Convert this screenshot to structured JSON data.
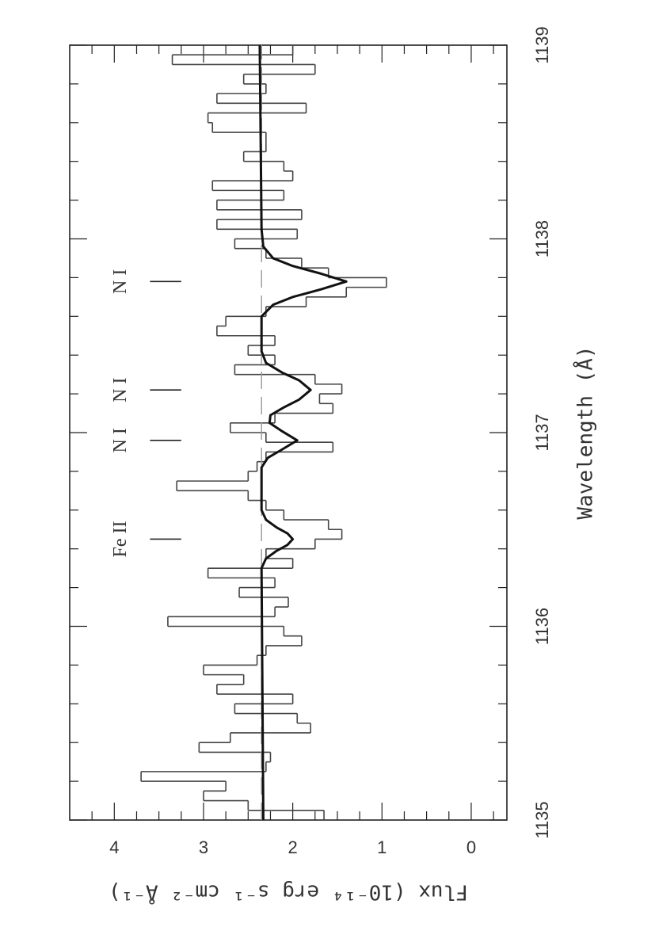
{
  "chart_data": {
    "type": "line",
    "xlabel": "Wavelength (Å)",
    "ylabel": "Flux (10⁻¹⁴ erg s⁻¹ cm⁻² Å⁻¹)",
    "xlim": [
      1135,
      1139
    ],
    "xticks": [
      1135,
      1136,
      1137,
      1138,
      1139
    ],
    "xminorticks": [
      1135.2,
      1135.4,
      1135.6,
      1135.8,
      1136.2,
      1136.4,
      1136.6,
      1136.8,
      1137.2,
      1137.4,
      1137.6,
      1137.8,
      1138.2,
      1138.4,
      1138.6,
      1138.8
    ],
    "ylim": [
      -0.4,
      4.5
    ],
    "yticks": [
      0,
      1,
      2,
      3,
      4
    ],
    "yminorticks": [
      -0.25,
      0.25,
      0.5,
      0.75,
      1.25,
      1.5,
      1.75,
      2.25,
      2.5,
      2.75,
      3.25,
      3.5,
      3.75,
      4.25
    ],
    "rotation": -90,
    "series": [
      {
        "type": "step",
        "color": "#444",
        "width": 1.6,
        "bins": [
          1135.0,
          1135.05,
          1135.1,
          1135.15,
          1135.2,
          1135.25,
          1135.3,
          1135.35,
          1135.4,
          1135.45,
          1135.5,
          1135.55,
          1135.6,
          1135.65,
          1135.7,
          1135.75,
          1135.8,
          1135.85,
          1135.9,
          1135.95,
          1136.0,
          1136.05,
          1136.1,
          1136.15,
          1136.2,
          1136.25,
          1136.3,
          1136.35,
          1136.4,
          1136.45,
          1136.5,
          1136.55,
          1136.6,
          1136.65,
          1136.7,
          1136.75,
          1136.8,
          1136.85,
          1136.9,
          1136.95,
          1137.0,
          1137.05,
          1137.1,
          1137.15,
          1137.2,
          1137.25,
          1137.3,
          1137.35,
          1137.4,
          1137.45,
          1137.5,
          1137.55,
          1137.6,
          1137.65,
          1137.7,
          1137.75,
          1137.8,
          1137.85,
          1137.9,
          1137.95,
          1138.0,
          1138.05,
          1138.1,
          1138.15,
          1138.2,
          1138.25,
          1138.3,
          1138.35,
          1138.4,
          1138.45,
          1138.5,
          1138.55,
          1138.6,
          1138.65,
          1138.7,
          1138.75,
          1138.8,
          1138.85,
          1138.9,
          1138.95,
          1139.0
        ],
        "values": [
          1.65,
          2.5,
          3.0,
          2.75,
          3.7,
          2.3,
          2.25,
          3.05,
          2.7,
          1.8,
          1.95,
          2.65,
          2.0,
          2.85,
          2.55,
          3.0,
          2.4,
          2.3,
          1.9,
          2.1,
          3.4,
          2.2,
          2.05,
          2.6,
          2.2,
          2.95,
          2.0,
          2.3,
          1.75,
          1.45,
          1.6,
          2.1,
          2.3,
          2.5,
          3.3,
          2.5,
          2.4,
          2.3,
          1.55,
          2.3,
          2.7,
          2.2,
          1.55,
          1.7,
          1.45,
          1.75,
          2.65,
          2.2,
          2.5,
          2.2,
          2.85,
          2.75,
          2.3,
          1.85,
          1.4,
          0.95,
          1.6,
          1.9,
          2.3,
          2.65,
          1.95,
          2.85,
          1.9,
          2.85,
          2.1,
          2.9,
          2.0,
          2.1,
          2.55,
          2.3,
          2.3,
          2.9,
          2.95,
          1.85,
          2.85,
          2.3,
          2.55,
          1.75,
          3.35,
          2.0
        ]
      },
      {
        "type": "line",
        "color": "#999",
        "width": 1.4,
        "dash": true,
        "x": [
          1135,
          1139
        ],
        "values": [
          2.35,
          2.35
        ]
      },
      {
        "type": "line",
        "color": "#111",
        "width": 3,
        "x": [
          1135,
          1136.3,
          1136.35,
          1136.39,
          1136.42,
          1136.45,
          1136.48,
          1136.51,
          1136.55,
          1136.6,
          1136.82,
          1136.87,
          1136.91,
          1136.96,
          1137.01,
          1137.05,
          1137.09,
          1137.13,
          1137.17,
          1137.22,
          1137.27,
          1137.31,
          1137.36,
          1137.42,
          1137.6,
          1137.66,
          1137.7,
          1137.74,
          1137.78,
          1137.82,
          1137.86,
          1137.9,
          1137.96,
          1138.05,
          1139
        ],
        "values": [
          2.33,
          2.35,
          2.3,
          2.18,
          2.06,
          2.0,
          2.06,
          2.18,
          2.3,
          2.35,
          2.35,
          2.28,
          2.13,
          1.95,
          2.13,
          2.26,
          2.25,
          2.1,
          1.93,
          1.8,
          1.93,
          2.12,
          2.3,
          2.35,
          2.35,
          2.22,
          2.0,
          1.68,
          1.4,
          1.68,
          2.0,
          2.22,
          2.33,
          2.35,
          2.37
        ]
      }
    ],
    "annotations": [
      {
        "text": "Fe II",
        "x": 1136.45
      },
      {
        "text": "N I",
        "x": 1136.96
      },
      {
        "text": "N I",
        "x": 1137.22
      },
      {
        "text": "N I",
        "x": 1137.78
      }
    ],
    "annotation_line": [
      3.25,
      3.6
    ],
    "annotation_text_y": 3.92
  }
}
